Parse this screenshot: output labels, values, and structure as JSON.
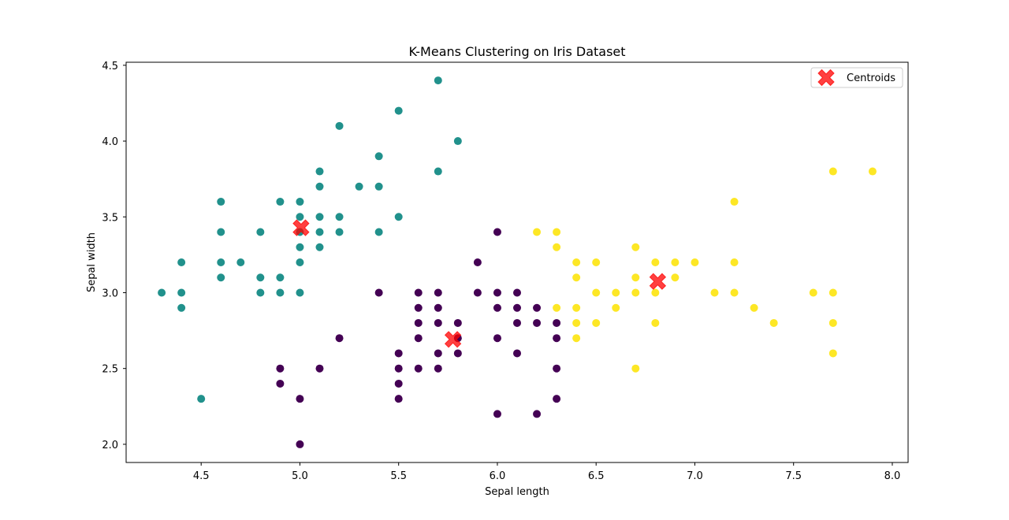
{
  "chart_data": {
    "type": "scatter",
    "title": "K-Means Clustering on Iris Dataset",
    "xlabel": "Sepal length",
    "ylabel": "Sepal width",
    "xlim": [
      4.12,
      8.08
    ],
    "ylim": [
      1.88,
      4.52
    ],
    "x_ticks": [
      4.5,
      5.0,
      5.5,
      6.0,
      6.5,
      7.0,
      7.5,
      8.0
    ],
    "x_tick_labels": [
      "4.5",
      "5.0",
      "5.5",
      "6.0",
      "6.5",
      "7.0",
      "7.5",
      "8.0"
    ],
    "y_ticks": [
      2.0,
      2.5,
      3.0,
      3.5,
      4.0,
      4.5
    ],
    "y_tick_labels": [
      "2.0",
      "2.5",
      "3.0",
      "3.5",
      "4.0",
      "4.5"
    ],
    "grid": false,
    "legend": {
      "placement": "top-right",
      "entries": [
        "Centroids"
      ]
    },
    "series": [
      {
        "cluster": 1,
        "color": "#440154",
        "points": [
          [
            5.0,
            2.0
          ],
          [
            6.0,
            2.2
          ],
          [
            6.2,
            2.2
          ],
          [
            5.0,
            2.3
          ],
          [
            5.5,
            2.3
          ],
          [
            6.3,
            2.3
          ],
          [
            4.9,
            2.4
          ],
          [
            5.5,
            2.4
          ],
          [
            4.9,
            2.5
          ],
          [
            5.1,
            2.5
          ],
          [
            5.5,
            2.5
          ],
          [
            5.6,
            2.5
          ],
          [
            5.7,
            2.5
          ],
          [
            6.3,
            2.5
          ],
          [
            5.5,
            2.6
          ],
          [
            5.7,
            2.6
          ],
          [
            5.8,
            2.6
          ],
          [
            6.1,
            2.6
          ],
          [
            5.2,
            2.7
          ],
          [
            5.6,
            2.7
          ],
          [
            5.8,
            2.7
          ],
          [
            6.0,
            2.7
          ],
          [
            6.3,
            2.7
          ],
          [
            5.6,
            2.8
          ],
          [
            5.7,
            2.8
          ],
          [
            5.8,
            2.8
          ],
          [
            6.1,
            2.8
          ],
          [
            6.2,
            2.8
          ],
          [
            6.3,
            2.8
          ],
          [
            5.6,
            2.9
          ],
          [
            5.7,
            2.9
          ],
          [
            6.0,
            2.9
          ],
          [
            6.1,
            2.9
          ],
          [
            6.2,
            2.9
          ],
          [
            5.4,
            3.0
          ],
          [
            5.6,
            3.0
          ],
          [
            5.7,
            3.0
          ],
          [
            5.9,
            3.0
          ],
          [
            6.0,
            3.0
          ],
          [
            6.1,
            3.0
          ],
          [
            5.9,
            3.2
          ],
          [
            6.0,
            3.4
          ]
        ]
      },
      {
        "cluster": 0,
        "color": "#21918c",
        "points": [
          [
            4.5,
            2.3
          ],
          [
            4.4,
            2.9
          ],
          [
            4.3,
            3.0
          ],
          [
            4.4,
            3.0
          ],
          [
            4.8,
            3.0
          ],
          [
            4.9,
            3.0
          ],
          [
            5.0,
            3.0
          ],
          [
            4.6,
            3.1
          ],
          [
            4.8,
            3.1
          ],
          [
            4.9,
            3.1
          ],
          [
            4.4,
            3.2
          ],
          [
            4.6,
            3.2
          ],
          [
            4.7,
            3.2
          ],
          [
            5.0,
            3.2
          ],
          [
            5.0,
            3.3
          ],
          [
            5.1,
            3.3
          ],
          [
            4.6,
            3.4
          ],
          [
            4.8,
            3.4
          ],
          [
            5.0,
            3.4
          ],
          [
            5.1,
            3.4
          ],
          [
            5.2,
            3.4
          ],
          [
            5.4,
            3.4
          ],
          [
            5.0,
            3.5
          ],
          [
            5.1,
            3.5
          ],
          [
            5.2,
            3.5
          ],
          [
            5.5,
            3.5
          ],
          [
            4.6,
            3.6
          ],
          [
            4.9,
            3.6
          ],
          [
            5.0,
            3.6
          ],
          [
            5.1,
            3.7
          ],
          [
            5.3,
            3.7
          ],
          [
            5.4,
            3.7
          ],
          [
            5.1,
            3.8
          ],
          [
            5.7,
            3.8
          ],
          [
            5.4,
            3.9
          ],
          [
            5.8,
            4.0
          ],
          [
            5.2,
            4.1
          ],
          [
            5.5,
            4.2
          ],
          [
            5.7,
            4.4
          ]
        ]
      },
      {
        "cluster": 2,
        "color": "#fde725",
        "points": [
          [
            6.7,
            2.5
          ],
          [
            7.7,
            2.6
          ],
          [
            6.4,
            2.7
          ],
          [
            6.4,
            2.8
          ],
          [
            6.5,
            2.8
          ],
          [
            6.8,
            2.8
          ],
          [
            7.4,
            2.8
          ],
          [
            7.7,
            2.8
          ],
          [
            6.3,
            2.9
          ],
          [
            6.4,
            2.9
          ],
          [
            6.6,
            2.9
          ],
          [
            7.3,
            2.9
          ],
          [
            6.5,
            3.0
          ],
          [
            6.6,
            3.0
          ],
          [
            6.7,
            3.0
          ],
          [
            6.8,
            3.0
          ],
          [
            7.1,
            3.0
          ],
          [
            7.2,
            3.0
          ],
          [
            7.6,
            3.0
          ],
          [
            7.7,
            3.0
          ],
          [
            6.4,
            3.1
          ],
          [
            6.7,
            3.1
          ],
          [
            6.9,
            3.1
          ],
          [
            6.4,
            3.2
          ],
          [
            6.5,
            3.2
          ],
          [
            6.8,
            3.2
          ],
          [
            6.9,
            3.2
          ],
          [
            7.0,
            3.2
          ],
          [
            7.2,
            3.2
          ],
          [
            6.3,
            3.3
          ],
          [
            6.7,
            3.3
          ],
          [
            6.2,
            3.4
          ],
          [
            6.3,
            3.4
          ],
          [
            7.2,
            3.6
          ],
          [
            7.7,
            3.8
          ],
          [
            7.9,
            3.8
          ]
        ]
      }
    ],
    "centroids": {
      "name": "Centroids",
      "color": "#ff0000",
      "points": [
        [
          5.006,
          3.428
        ],
        [
          5.775,
          2.692
        ],
        [
          6.812,
          3.074
        ]
      ]
    }
  }
}
